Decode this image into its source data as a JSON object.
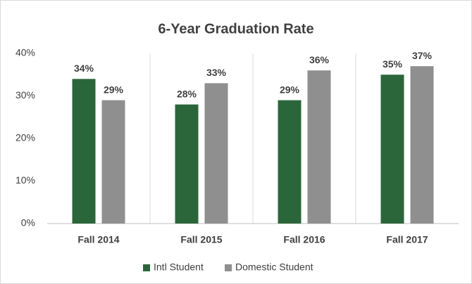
{
  "chart_data": {
    "type": "bar",
    "title": "6-Year Graduation Rate",
    "categories": [
      "Fall 2014",
      "Fall 2015",
      "Fall 2016",
      "Fall 2017"
    ],
    "series": [
      {
        "name": "Intl Student",
        "color": "#2b663b",
        "values": [
          34,
          28,
          29,
          35
        ],
        "value_labels": [
          "34%",
          "28%",
          "29%",
          "35%"
        ]
      },
      {
        "name": "Domestic Student",
        "color": "#8f8f8f",
        "values": [
          29,
          33,
          36,
          37
        ],
        "value_labels": [
          "29%",
          "33%",
          "36%",
          "37%"
        ]
      }
    ],
    "ylim": [
      0,
      40
    ],
    "yticks": [
      {
        "value": 0,
        "label": "0%"
      },
      {
        "value": 10,
        "label": "10%"
      },
      {
        "value": 20,
        "label": "20%"
      },
      {
        "value": 30,
        "label": "30%"
      },
      {
        "value": 40,
        "label": "40%"
      }
    ],
    "grid": false,
    "legend": "bottom"
  }
}
